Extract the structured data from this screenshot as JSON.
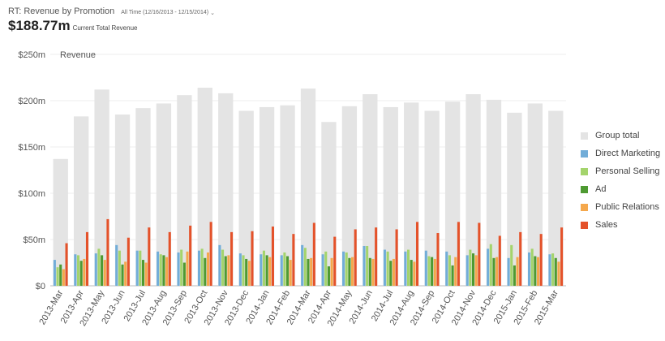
{
  "header": {
    "title": "RT: Revenue by Promotion",
    "range_label": "All Time (12/16/2013 - 12/15/2014)",
    "total_value": "$188.77m",
    "total_label": "Current Total Revenue"
  },
  "legend": {
    "items": [
      {
        "label": "Group total",
        "color": "#e4e4e4"
      },
      {
        "label": "Direct Marketing",
        "color": "#72add8"
      },
      {
        "label": "Personal Selling",
        "color": "#a4d46c"
      },
      {
        "label": "Ad",
        "color": "#4e9a32"
      },
      {
        "label": "Public Relations",
        "color": "#f5a84c"
      },
      {
        "label": "Sales",
        "color": "#e4522a"
      }
    ]
  },
  "chart_data": {
    "type": "bar",
    "title": "",
    "inner_label": "Revenue",
    "xlabel": "",
    "ylabel": "",
    "ylim": [
      0,
      250
    ],
    "y_ticks": [
      0,
      50,
      100,
      150,
      200,
      250
    ],
    "y_tick_labels": [
      "$0",
      "$50m",
      "$100m",
      "$150m",
      "$200m",
      "$250m"
    ],
    "grid": true,
    "legend_position": "right",
    "categories": [
      "2013-Mar",
      "2013-Apr",
      "2013-May",
      "2013-Jun",
      "2013-Jul",
      "2013-Aug",
      "2013-Sep",
      "2013-Oct",
      "2013-Nov",
      "2013-Dec",
      "2014-Jan",
      "2014-Feb",
      "2014-Mar",
      "2014-Apr",
      "2014-May",
      "2014-Jun",
      "2014-Jul",
      "2014-Aug",
      "2014-Sep",
      "2014-Oct",
      "2014-Nov",
      "2014-Dec",
      "2015-Jan",
      "2015-Feb",
      "2015-Mar"
    ],
    "group_total": {
      "name": "Group total",
      "color": "#e4e4e4",
      "values": [
        137,
        183,
        212,
        185,
        192,
        197,
        206,
        214,
        208,
        189,
        193,
        195,
        213,
        177,
        194,
        207,
        193,
        198,
        189,
        199,
        207,
        201,
        187,
        197,
        189
      ]
    },
    "series": [
      {
        "name": "Direct Marketing",
        "color": "#72add8",
        "values": [
          28,
          34,
          35,
          44,
          38,
          37,
          36,
          38,
          44,
          35,
          34,
          33,
          44,
          34,
          37,
          43,
          39,
          37,
          38,
          37,
          33,
          40,
          30,
          36,
          34
        ]
      },
      {
        "name": "Personal Selling",
        "color": "#a4d46c",
        "values": [
          20,
          33,
          40,
          38,
          38,
          34,
          39,
          40,
          39,
          33,
          38,
          36,
          41,
          37,
          36,
          43,
          37,
          39,
          32,
          33,
          39,
          45,
          44,
          40,
          35
        ]
      },
      {
        "name": "Ad",
        "color": "#4e9a32",
        "values": [
          23,
          27,
          33,
          23,
          28,
          33,
          25,
          30,
          32,
          29,
          33,
          32,
          29,
          21,
          30,
          30,
          27,
          28,
          31,
          22,
          35,
          30,
          22,
          32,
          30
        ]
      },
      {
        "name": "Public Relations",
        "color": "#f5a84c",
        "values": [
          18,
          29,
          28,
          26,
          25,
          31,
          37,
          36,
          33,
          27,
          31,
          28,
          30,
          30,
          31,
          29,
          29,
          26,
          29,
          31,
          33,
          31,
          31,
          31,
          26
        ]
      },
      {
        "name": "Sales",
        "color": "#e4522a",
        "values": [
          46,
          58,
          72,
          52,
          63,
          58,
          65,
          69,
          58,
          59,
          64,
          56,
          68,
          53,
          61,
          63,
          61,
          69,
          57,
          69,
          68,
          54,
          58,
          56,
          63
        ]
      }
    ]
  }
}
